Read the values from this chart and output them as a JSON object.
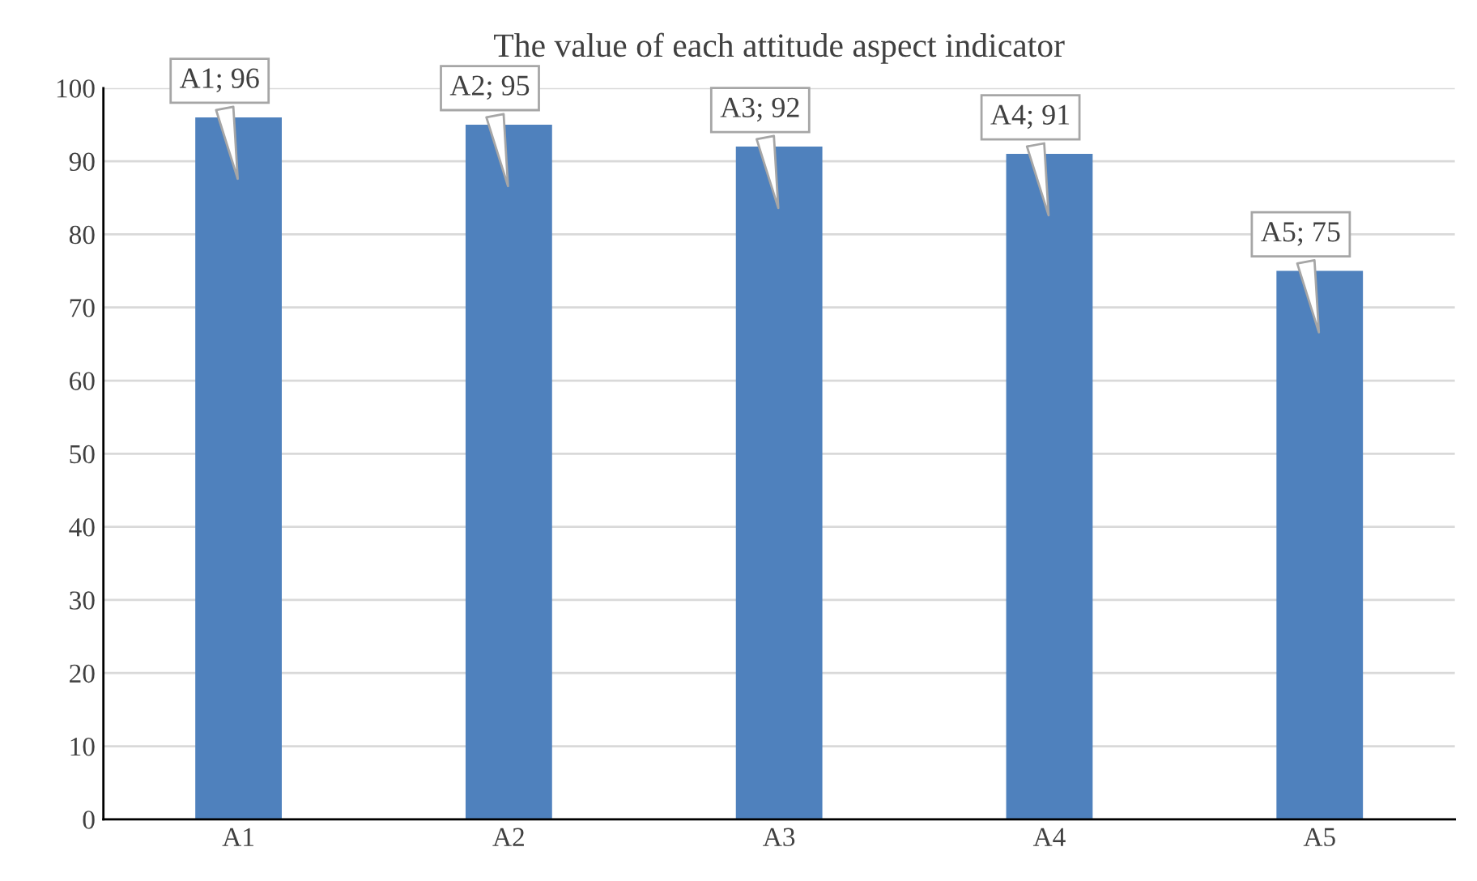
{
  "chart_data": {
    "type": "bar",
    "title": "The value of each attitude aspect indicator",
    "categories": [
      "A1",
      "A2",
      "A3",
      "A4",
      "A5"
    ],
    "values": [
      96,
      95,
      92,
      91,
      75
    ],
    "value_labels": [
      "A1; 96",
      "A2; 95",
      "A3; 92",
      "A4; 91",
      "A5; 75"
    ],
    "color": "#4f81bd",
    "ylim": [
      0,
      100
    ],
    "yticks": [
      0,
      10,
      20,
      30,
      40,
      50,
      60,
      70,
      80,
      90,
      100
    ],
    "grid": "y",
    "legend": false
  }
}
